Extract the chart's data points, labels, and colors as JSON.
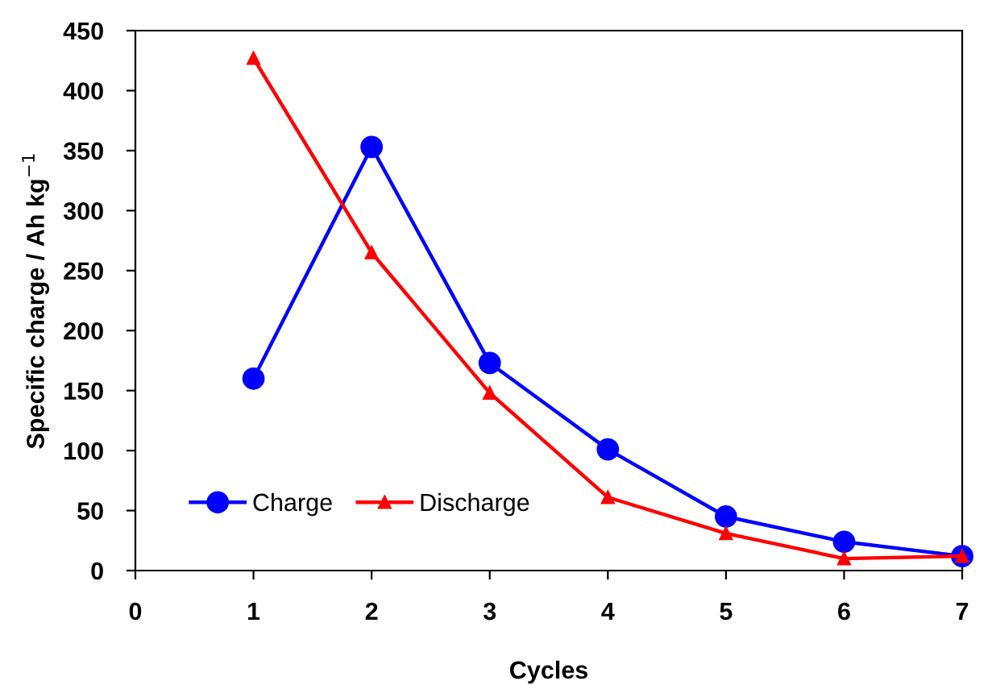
{
  "chart_data": {
    "type": "line",
    "xlabel": "Cycles",
    "ylabel": "Specific charge / Ah kg$^{−1}$",
    "x": [
      1,
      2,
      3,
      4,
      5,
      6,
      7
    ],
    "series": [
      {
        "name": "Charge",
        "color": "#0000ff",
        "marker": "circle",
        "values": [
          160,
          353,
          173,
          101,
          45,
          24,
          12
        ]
      },
      {
        "name": "Discharge",
        "color": "#ff0000",
        "marker": "triangle",
        "values": [
          427,
          265,
          148,
          61,
          31,
          10,
          12
        ]
      }
    ],
    "xlim": [
      0,
      7
    ],
    "xticks": [
      0,
      1,
      2,
      3,
      4,
      5,
      6,
      7
    ],
    "ylim": [
      0,
      450
    ],
    "yticks": [
      0,
      50,
      100,
      150,
      200,
      250,
      300,
      350,
      400,
      450
    ],
    "grid": false,
    "legend": "bottom left",
    "line_style": "solid"
  }
}
